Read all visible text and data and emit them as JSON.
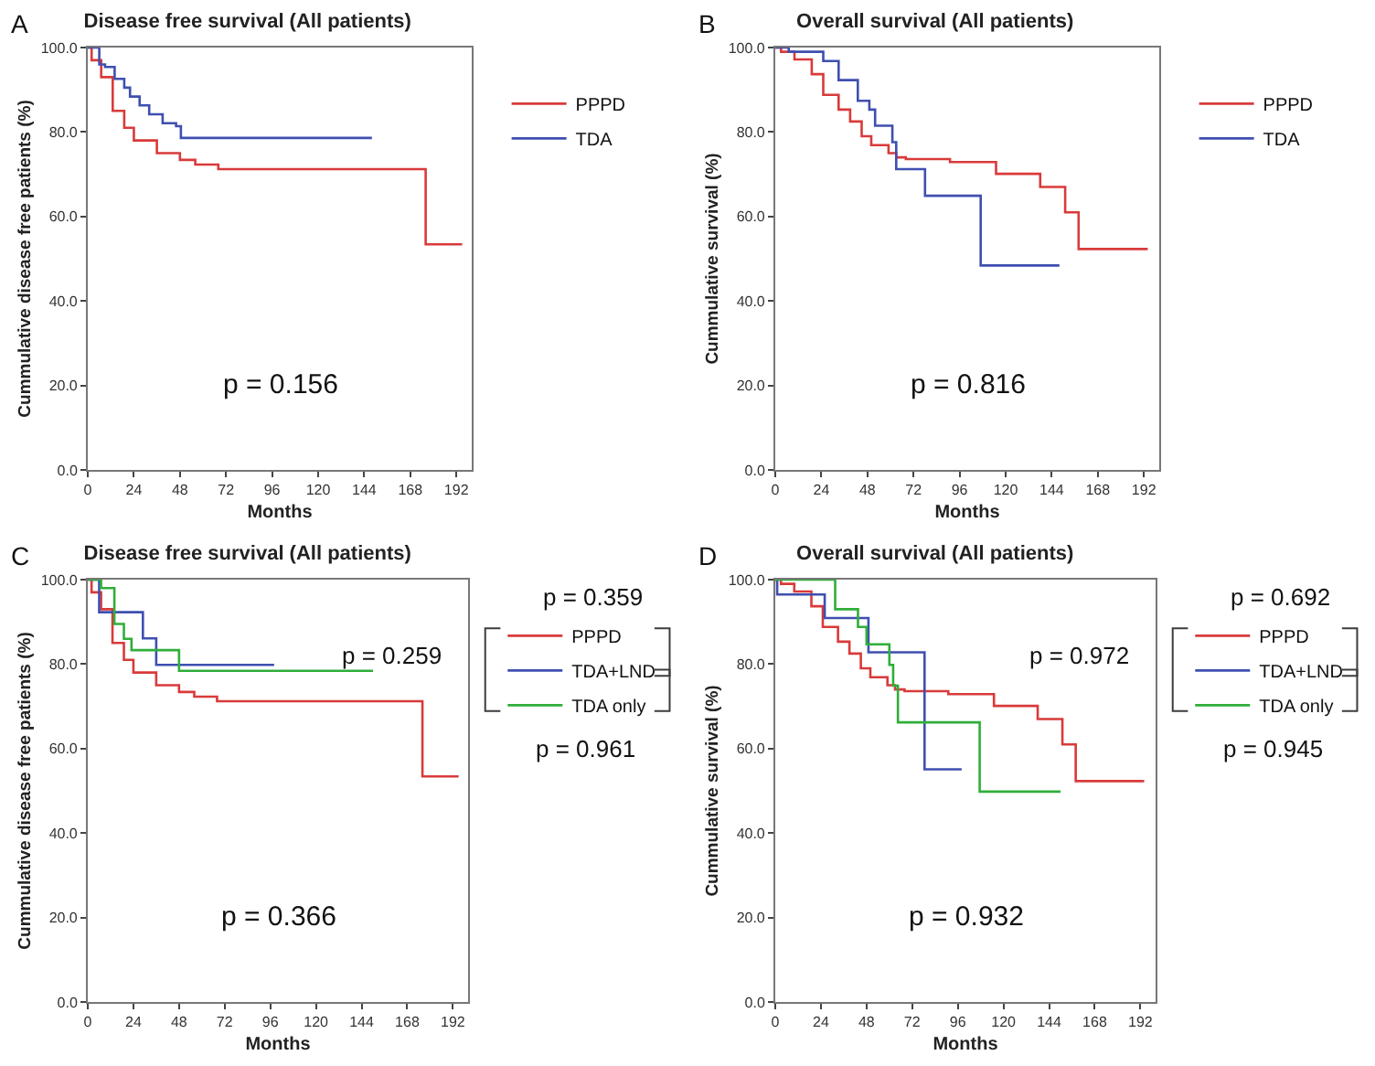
{
  "chart_data": [
    {
      "type": "step",
      "title": "Disease free survival (All patients)",
      "xlabel": "Months",
      "ylabel": "Cummulative disease free patients (%)",
      "xlim": [
        0,
        200
      ],
      "xticks": [
        0,
        24,
        48,
        72,
        96,
        120,
        144,
        168,
        192
      ],
      "ylim": [
        0,
        100
      ],
      "yticks": [
        {
          "value": 0,
          "label": "0.0"
        },
        {
          "value": 20,
          "label": "20.0"
        },
        {
          "value": 40,
          "label": "40.0"
        },
        {
          "value": 60,
          "label": "60.0"
        },
        {
          "value": 80,
          "label": "80.0"
        },
        {
          "value": 100,
          "label": "100.0"
        }
      ],
      "legend": "right",
      "grid": false,
      "annotations": [
        "A",
        "p = 0.156"
      ],
      "series": [
        {
          "name": "PPPD",
          "color": "#d93a3a",
          "x": [
            0,
            2,
            7,
            13,
            19,
            24,
            36,
            48,
            56,
            68,
            176,
            195
          ],
          "values": [
            100,
            97,
            93,
            85,
            81,
            78,
            75,
            73.4,
            72.3,
            71.2,
            53.4,
            53.4
          ]
        },
        {
          "name": "TDA",
          "color": "#3f4fb0",
          "x": [
            0,
            6,
            9,
            14,
            19,
            22,
            27,
            32,
            39,
            46,
            48.5,
            148
          ],
          "values": [
            100,
            96,
            95.4,
            92.6,
            90.5,
            88.4,
            86.3,
            84.2,
            82.1,
            81.4,
            78.6,
            78.6
          ]
        }
      ]
    },
    {
      "type": "step",
      "title": "Overall survival (All patients)",
      "xlabel": "Months",
      "ylabel": "Cummulative survival (%)",
      "xlim": [
        0,
        200
      ],
      "xticks": [
        0,
        24,
        48,
        72,
        96,
        120,
        144,
        168,
        192
      ],
      "ylim": [
        0,
        100
      ],
      "yticks": [
        {
          "value": 0,
          "label": "0.0"
        },
        {
          "value": 20,
          "label": "20.0"
        },
        {
          "value": 40,
          "label": "40.0"
        },
        {
          "value": 60,
          "label": "60.0"
        },
        {
          "value": 80,
          "label": "80.0"
        },
        {
          "value": 100,
          "label": "100.0"
        }
      ],
      "legend": "right",
      "grid": false,
      "annotations": [
        "B",
        "p = 0.816"
      ],
      "series": [
        {
          "name": "PPPD",
          "color": "#d93a3a",
          "x": [
            0,
            3,
            10,
            19,
            25,
            33,
            39,
            45,
            50,
            59,
            63,
            68,
            91,
            115,
            138,
            151,
            158,
            194
          ],
          "values": [
            100,
            99,
            97.2,
            93.7,
            88.8,
            85.3,
            82.5,
            79,
            76.9,
            75,
            74,
            73.6,
            72.9,
            70.1,
            67,
            61,
            52.3,
            52.3
          ]
        },
        {
          "name": "TDA",
          "color": "#3f4fb0",
          "x": [
            0,
            7,
            25,
            33,
            43,
            49,
            52,
            61,
            63,
            78,
            107,
            148
          ],
          "values": [
            100,
            99,
            96.8,
            92.3,
            87.4,
            85.3,
            81.5,
            77.6,
            71.2,
            64.9,
            48.4,
            48.4
          ]
        }
      ]
    },
    {
      "type": "step",
      "title": "Disease free survival (All patients)",
      "xlabel": "Months",
      "ylabel": "Cummulative disease free patients (%)",
      "xlim": [
        0,
        200
      ],
      "xticks": [
        0,
        24,
        48,
        72,
        96,
        120,
        144,
        168,
        192
      ],
      "ylim": [
        0,
        100
      ],
      "yticks": [
        {
          "value": 0,
          "label": "0.0"
        },
        {
          "value": 20,
          "label": "20.0"
        },
        {
          "value": 40,
          "label": "40.0"
        },
        {
          "value": 60,
          "label": "60.0"
        },
        {
          "value": 80,
          "label": "80.0"
        },
        {
          "value": 100,
          "label": "100.0"
        }
      ],
      "legend": "right",
      "grid": false,
      "annotations": [
        "C",
        "p = 0.366",
        "p = 0.259",
        "p = 0.359",
        "p = 0.961"
      ],
      "series": [
        {
          "name": "PPPD",
          "color": "#d93a3a",
          "x": [
            0,
            2,
            7,
            13,
            19,
            24,
            36,
            48,
            56,
            68,
            176,
            195
          ],
          "values": [
            100,
            97,
            93,
            85,
            81,
            78,
            75,
            73.4,
            72.3,
            71.2,
            53.4,
            53.4
          ]
        },
        {
          "name": "TDA+LND",
          "color": "#3f4fb0",
          "x": [
            0,
            6,
            29,
            36,
            98
          ],
          "values": [
            100,
            92.3,
            86.1,
            79.8,
            79.8
          ]
        },
        {
          "name": "TDA only",
          "color": "#2fae3a",
          "x": [
            0,
            7,
            14,
            19,
            23,
            48,
            150
          ],
          "values": [
            100,
            98,
            89.5,
            86,
            83.3,
            78.4,
            78.4
          ]
        }
      ]
    },
    {
      "type": "step",
      "title": "Overall survival (All patients)",
      "xlabel": "Months",
      "ylabel": "Cummulative survival (%)",
      "xlim": [
        0,
        200
      ],
      "xticks": [
        0,
        24,
        48,
        72,
        96,
        120,
        144,
        168,
        192
      ],
      "ylim": [
        0,
        100
      ],
      "yticks": [
        {
          "value": 0,
          "label": "0.0"
        },
        {
          "value": 20,
          "label": "20.0"
        },
        {
          "value": 40,
          "label": "40.0"
        },
        {
          "value": 60,
          "label": "60.0"
        },
        {
          "value": 80,
          "label": "80.0"
        },
        {
          "value": 100,
          "label": "100.0"
        }
      ],
      "legend": "right",
      "grid": false,
      "annotations": [
        "D",
        "p = 0.932",
        "p = 0.972",
        "p = 0.692",
        "p = 0.945"
      ],
      "series": [
        {
          "name": "PPPD",
          "color": "#d93a3a",
          "x": [
            0,
            3,
            10,
            19,
            25,
            33,
            39,
            45,
            50,
            59,
            63,
            68,
            91,
            115,
            138,
            151,
            158,
            194
          ],
          "values": [
            100,
            99,
            97.2,
            93.7,
            88.8,
            85.3,
            82.5,
            79,
            76.9,
            75,
            74,
            73.6,
            72.9,
            70.1,
            67,
            61,
            52.3,
            52.3
          ]
        },
        {
          "name": "TDA+LND",
          "color": "#3f4fb0",
          "x": [
            0,
            1,
            26,
            49,
            78.5,
            98
          ],
          "values": [
            100,
            96.5,
            90.9,
            82.8,
            55.1,
            55.1
          ]
        },
        {
          "name": "TDA only",
          "color": "#2fae3a",
          "x": [
            0,
            31.5,
            43.5,
            48,
            60,
            62,
            64.5,
            107.5,
            150
          ],
          "values": [
            100,
            93,
            88.8,
            84.7,
            79.8,
            74.9,
            66.2,
            49.8,
            49.8
          ]
        }
      ]
    }
  ]
}
